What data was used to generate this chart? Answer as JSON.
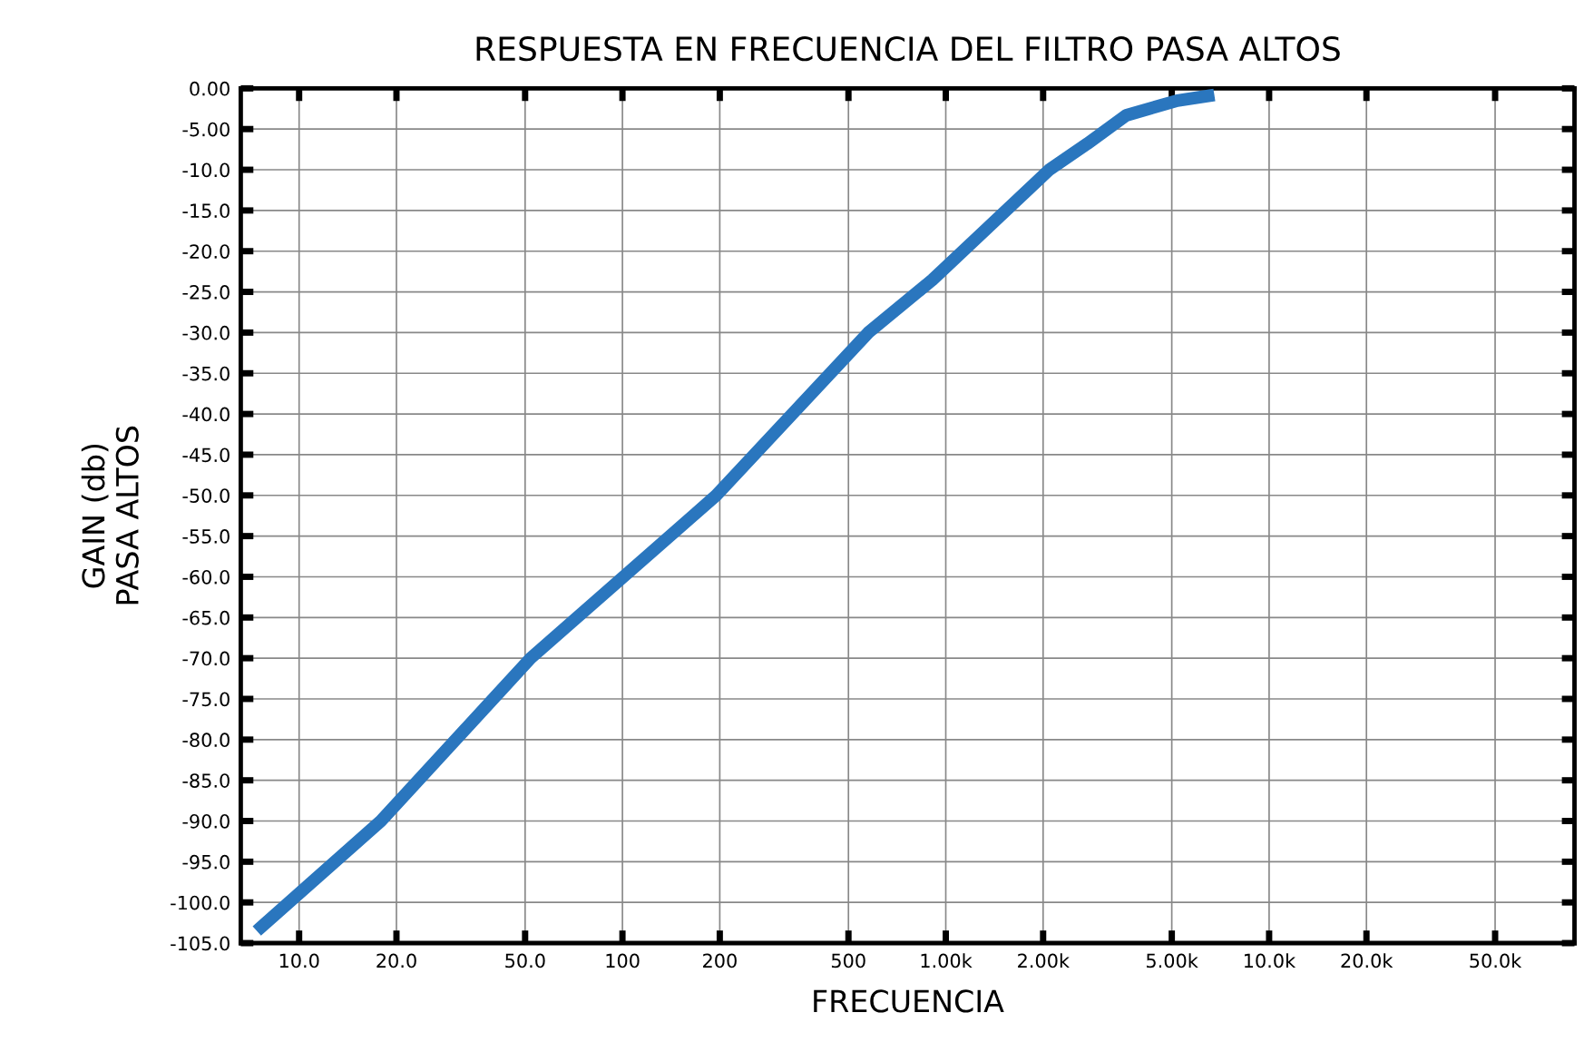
{
  "chart_data": {
    "type": "line",
    "title": "RESPUESTA EN FRECUENCIA DEL FILTRO PASA ALTOS",
    "xlabel": "FRECUENCIA",
    "ylabel": "GAIN (db)\nPASA ALTOS",
    "log": "x",
    "series": [
      {
        "color": "#2a76be",
        "x": [
          7.4,
          17.9,
          52,
          195,
          576,
          910,
          2090,
          2740,
          3620,
          5200,
          6770
        ],
        "values": [
          -103.5,
          -90,
          -70,
          -50,
          -30,
          -23.5,
          -10,
          -6.8,
          -3.3,
          -1.5,
          -0.8
        ]
      }
    ],
    "xlim": [
      6.6,
      88000
    ],
    "xticks": [
      {
        "value": 10,
        "label": "10.0"
      },
      {
        "value": 20,
        "label": "20.0"
      },
      {
        "value": 50,
        "label": "50.0"
      },
      100,
      200,
      500,
      {
        "value": 1000,
        "label": "1.00k"
      },
      {
        "value": 2000,
        "label": "2.00k"
      },
      {
        "value": 5000,
        "label": "5.00k"
      },
      {
        "value": 10000,
        "label": "10.0k"
      },
      {
        "value": 20000,
        "label": "20.0k"
      },
      {
        "value": 50000,
        "label": "50.0k"
      }
    ],
    "ylim": [
      -105,
      0
    ],
    "yticks": [
      {
        "value": 0,
        "label": "0.00"
      },
      {
        "value": -5,
        "label": "-5.00"
      },
      {
        "value": -10,
        "label": "-10.0"
      },
      {
        "value": -15,
        "label": "-15.0"
      },
      {
        "value": -20,
        "label": "-20.0"
      },
      {
        "value": -25,
        "label": "-25.0"
      },
      {
        "value": -30,
        "label": "-30.0"
      },
      {
        "value": -35,
        "label": "-35.0"
      },
      {
        "value": -40,
        "label": "-40.0"
      },
      {
        "value": -45,
        "label": "-45.0"
      },
      {
        "value": -50,
        "label": "-50.0"
      },
      {
        "value": -55,
        "label": "-55.0"
      },
      {
        "value": -60,
        "label": "-60.0"
      },
      {
        "value": -65,
        "label": "-65.0"
      },
      {
        "value": -70,
        "label": "-70.0"
      },
      {
        "value": -75,
        "label": "-75.0"
      },
      {
        "value": -80,
        "label": "-80.0"
      },
      {
        "value": -85,
        "label": "-85.0"
      },
      {
        "value": -90,
        "label": "-90.0"
      },
      {
        "value": -95,
        "label": "-95.0"
      },
      {
        "value": -100,
        "label": "-100.0"
      },
      {
        "value": -105,
        "label": "-105.0"
      }
    ],
    "grid": true,
    "marker": "none",
    "line_style": "solid"
  }
}
